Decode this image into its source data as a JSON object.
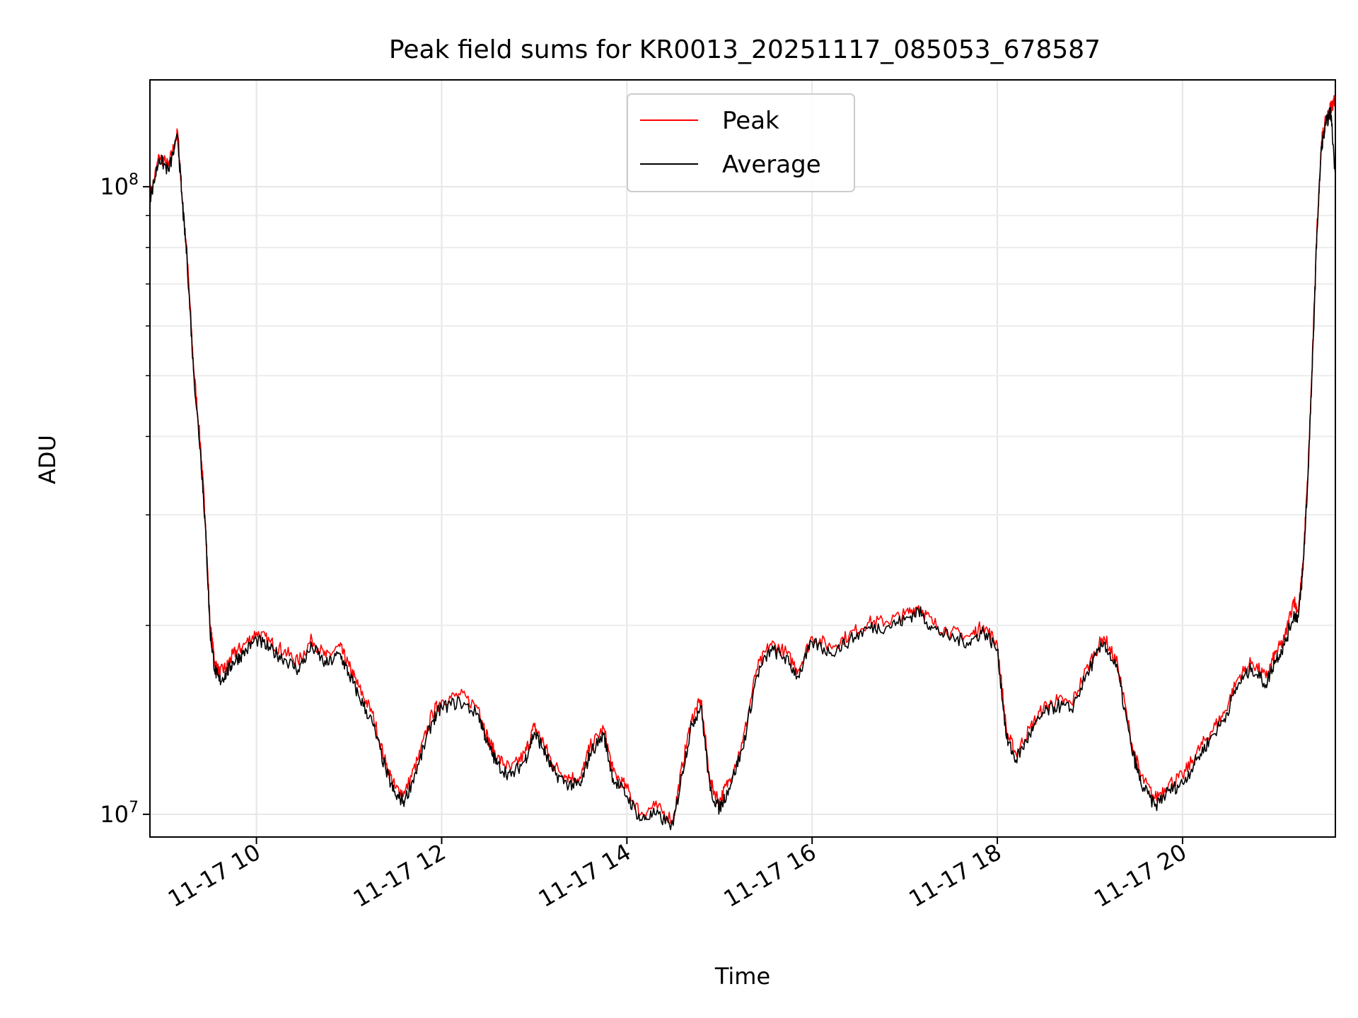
{
  "chart_data": {
    "type": "line",
    "title": "Peak field sums for KR0013_20251117_085053_678587",
    "xlabel": "Time",
    "ylabel": "ADU",
    "yscale": "log",
    "xlim": [
      8.85,
      21.65
    ],
    "ylim": [
      9200000,
      148000000
    ],
    "grid": true,
    "legend_position": "top-center",
    "x_ticks": [
      {
        "value": 10,
        "label": "11-17 10"
      },
      {
        "value": 12,
        "label": "11-17 12"
      },
      {
        "value": 14,
        "label": "11-17 14"
      },
      {
        "value": 16,
        "label": "11-17 16"
      },
      {
        "value": 18,
        "label": "11-17 18"
      },
      {
        "value": 20,
        "label": "11-17 20"
      }
    ],
    "y_ticks": [
      {
        "value": 10000000,
        "base": "10",
        "exp": "7"
      },
      {
        "value": 100000000,
        "base": "10",
        "exp": "8"
      }
    ],
    "x_unit": "hours on 2025-11-17",
    "series": [
      {
        "name": "Peak",
        "color": "#ff0000",
        "x": [
          8.85,
          8.95,
          9.05,
          9.15,
          9.2,
          9.25,
          9.32,
          9.4,
          9.45,
          9.5,
          9.55,
          9.6,
          9.68,
          9.75,
          9.85,
          10.0,
          10.15,
          10.3,
          10.45,
          10.6,
          10.75,
          10.9,
          11.0,
          11.1,
          11.25,
          11.4,
          11.5,
          11.6,
          11.75,
          11.9,
          12.0,
          12.2,
          12.4,
          12.5,
          12.6,
          12.75,
          12.9,
          13.0,
          13.1,
          13.2,
          13.35,
          13.5,
          13.6,
          13.75,
          13.85,
          14.0,
          14.15,
          14.3,
          14.5,
          14.6,
          14.7,
          14.8,
          14.9,
          15.0,
          15.1,
          15.25,
          15.4,
          15.55,
          15.7,
          15.85,
          16.0,
          16.2,
          16.4,
          16.6,
          16.8,
          17.0,
          17.15,
          17.3,
          17.5,
          17.7,
          17.85,
          18.0,
          18.1,
          18.2,
          18.35,
          18.5,
          18.65,
          18.8,
          19.0,
          19.15,
          19.3,
          19.45,
          19.55,
          19.7,
          19.85,
          20.0,
          20.15,
          20.3,
          20.45,
          20.6,
          20.75,
          20.9,
          21.0,
          21.1,
          21.2,
          21.25,
          21.3,
          21.35,
          21.4,
          21.45,
          21.5,
          21.55,
          21.6,
          21.65
        ],
        "values": [
          96000000,
          112000000,
          108000000,
          122000000,
          95000000,
          78000000,
          52000000,
          38000000,
          29000000,
          20000000,
          17500000,
          16800000,
          17200000,
          18000000,
          18500000,
          19500000,
          18800000,
          18200000,
          17500000,
          19000000,
          17800000,
          18500000,
          17200000,
          16000000,
          14500000,
          12000000,
          11000000,
          10800000,
          12300000,
          14500000,
          15200000,
          15500000,
          14800000,
          13200000,
          12300000,
          11800000,
          12500000,
          13800000,
          13000000,
          12000000,
          11500000,
          11400000,
          12800000,
          13700000,
          11700000,
          11000000,
          10000000,
          10300000,
          9800000,
          12000000,
          14200000,
          15200000,
          11200000,
          10500000,
          11300000,
          13000000,
          17000000,
          18700000,
          18200000,
          17000000,
          19200000,
          18500000,
          19300000,
          20200000,
          20300000,
          20800000,
          21500000,
          20200000,
          19500000,
          19200000,
          20000000,
          18700000,
          13500000,
          12500000,
          13700000,
          14800000,
          15200000,
          15000000,
          17500000,
          19200000,
          17300000,
          13000000,
          11500000,
          10600000,
          11200000,
          11500000,
          12500000,
          13500000,
          14500000,
          16500000,
          17500000,
          16500000,
          18000000,
          19000000,
          22000000,
          21000000,
          25000000,
          34000000,
          52000000,
          85000000,
          118000000,
          128000000,
          134000000,
          138000000
        ]
      },
      {
        "name": "Average",
        "color": "#000000",
        "x": [
          8.85,
          8.95,
          9.05,
          9.15,
          9.2,
          9.25,
          9.32,
          9.4,
          9.45,
          9.5,
          9.55,
          9.6,
          9.68,
          9.75,
          9.85,
          10.0,
          10.15,
          10.3,
          10.45,
          10.6,
          10.75,
          10.9,
          11.0,
          11.1,
          11.25,
          11.4,
          11.5,
          11.6,
          11.75,
          11.9,
          12.0,
          12.2,
          12.4,
          12.5,
          12.6,
          12.75,
          12.9,
          13.0,
          13.1,
          13.2,
          13.35,
          13.5,
          13.6,
          13.75,
          13.85,
          14.0,
          14.15,
          14.3,
          14.5,
          14.6,
          14.7,
          14.8,
          14.9,
          15.0,
          15.1,
          15.25,
          15.4,
          15.55,
          15.7,
          15.85,
          16.0,
          16.2,
          16.4,
          16.6,
          16.8,
          17.0,
          17.15,
          17.3,
          17.5,
          17.7,
          17.85,
          18.0,
          18.1,
          18.2,
          18.35,
          18.5,
          18.65,
          18.8,
          19.0,
          19.15,
          19.3,
          19.45,
          19.55,
          19.7,
          19.85,
          20.0,
          20.15,
          20.3,
          20.45,
          20.6,
          20.75,
          20.9,
          21.0,
          21.1,
          21.2,
          21.25,
          21.3,
          21.35,
          21.4,
          21.45,
          21.5,
          21.55,
          21.6,
          21.65
        ],
        "values": [
          95000000,
          111000000,
          106000000,
          120000000,
          94000000,
          77000000,
          51000000,
          37000000,
          28500000,
          19500000,
          17000000,
          16300000,
          16800000,
          17500000,
          18000000,
          19000000,
          18300000,
          17700000,
          17000000,
          18500000,
          17300000,
          18000000,
          16700000,
          15500000,
          14000000,
          11700000,
          10700000,
          10500000,
          12000000,
          14100000,
          14800000,
          15100000,
          14400000,
          12900000,
          12000000,
          11500000,
          12200000,
          13500000,
          12700000,
          11700000,
          11200000,
          11100000,
          12500000,
          13400000,
          11400000,
          10700000,
          9800000,
          10000000,
          9600000,
          11700000,
          13900000,
          14900000,
          10900000,
          10200000,
          11000000,
          12700000,
          16600000,
          18300000,
          17800000,
          16600000,
          18800000,
          18100000,
          18900000,
          19800000,
          19900000,
          20400000,
          21100000,
          19800000,
          19100000,
          18800000,
          19600000,
          18300000,
          13200000,
          12200000,
          13400000,
          14500000,
          14900000,
          14700000,
          17100000,
          18800000,
          16900000,
          12700000,
          11200000,
          10300000,
          10900000,
          11200000,
          12200000,
          13200000,
          14200000,
          16100000,
          17100000,
          16100000,
          17600000,
          18600000,
          20800000,
          20600000,
          24500000,
          33500000,
          51000000,
          84000000,
          116000000,
          126000000,
          132000000,
          104000000
        ]
      }
    ]
  }
}
